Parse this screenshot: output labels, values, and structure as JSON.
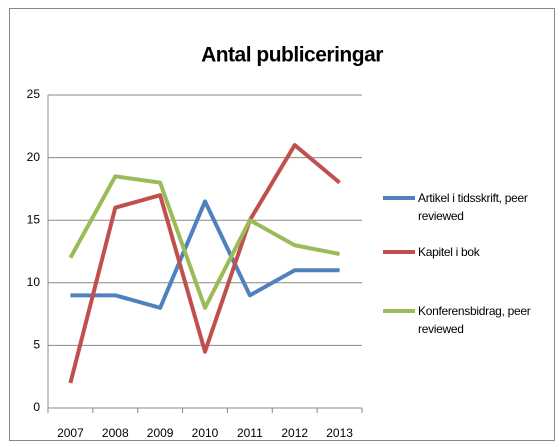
{
  "chart_data": {
    "type": "line",
    "title": "Antal publiceringar",
    "categories": [
      "2007",
      "2008",
      "2009",
      "2010",
      "2011",
      "2012",
      "2013"
    ],
    "series": [
      {
        "name": "Artikel i tidsskrift, peer reviewed",
        "color": "#4f81bd",
        "values": [
          9,
          9,
          8,
          16.5,
          9,
          11,
          11
        ]
      },
      {
        "name": "Kapitel i bok",
        "color": "#c0504d",
        "values": [
          2,
          16,
          17,
          4.5,
          15,
          21,
          18
        ]
      },
      {
        "name": "Konferensbidrag, peer reviewed",
        "color": "#9bbb59",
        "values": [
          12,
          18.5,
          18,
          8,
          15,
          13,
          12.3
        ]
      }
    ],
    "ylim": [
      0,
      25
    ],
    "yticks": [
      0,
      5,
      10,
      15,
      20,
      25
    ],
    "grid": true,
    "legend": "right"
  }
}
